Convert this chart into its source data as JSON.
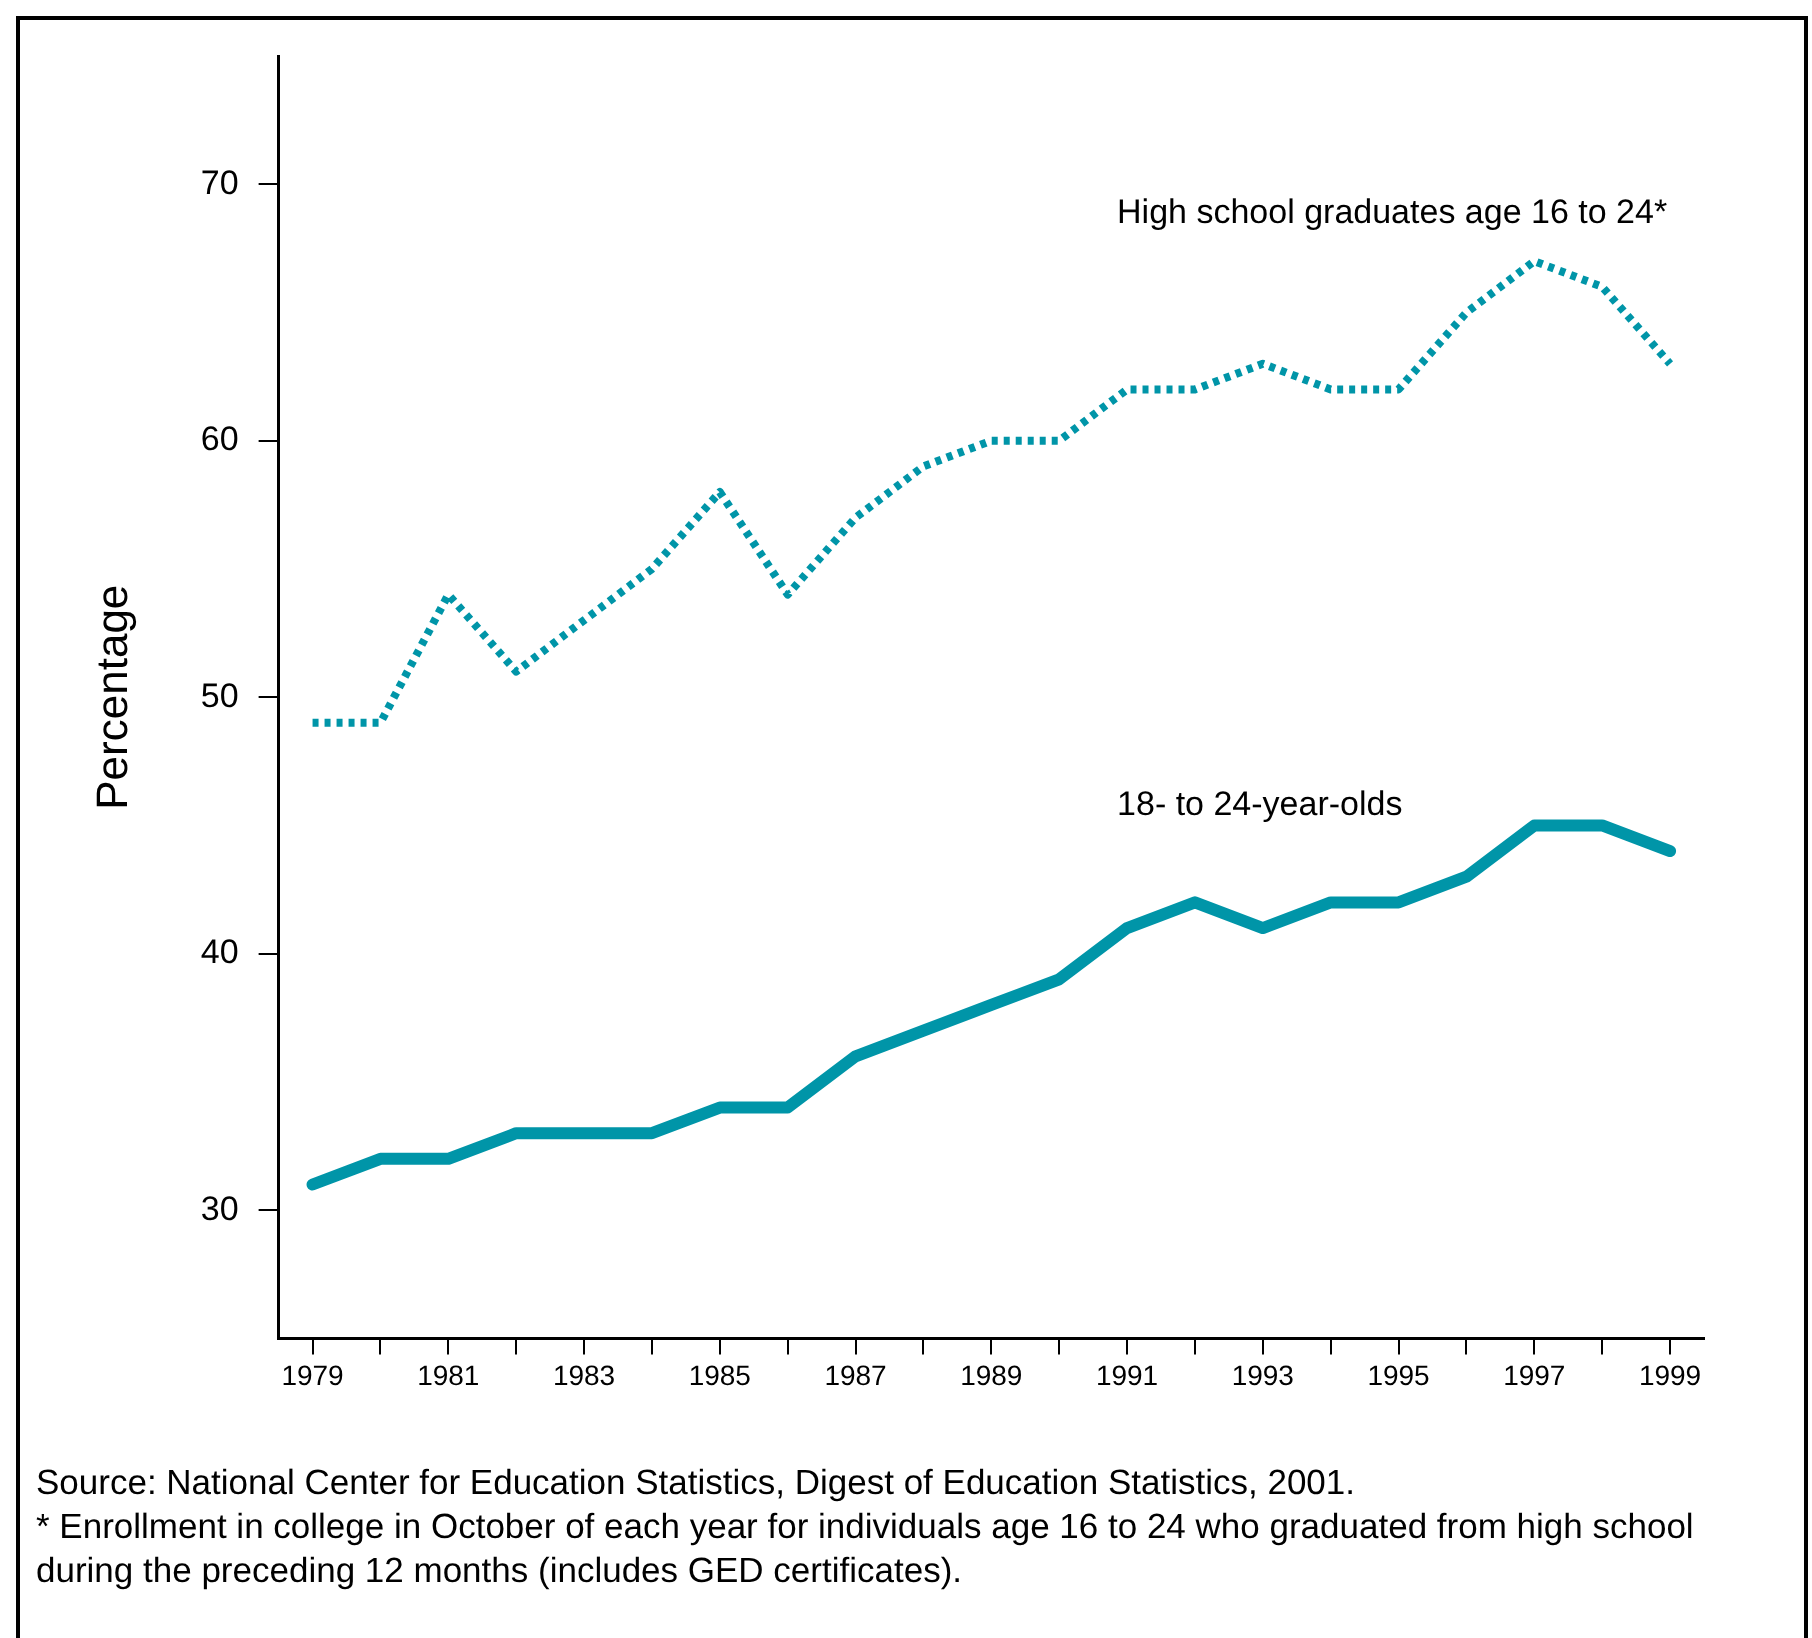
{
  "chart_data": {
    "type": "line",
    "ylabel": "Percentage",
    "x": [
      1979,
      1980,
      1981,
      1982,
      1983,
      1984,
      1985,
      1986,
      1987,
      1988,
      1989,
      1990,
      1991,
      1992,
      1993,
      1994,
      1995,
      1996,
      1997,
      1998,
      1999
    ],
    "series": [
      {
        "name": "High school graduates age 16 to 24*",
        "color": "#0095a8",
        "line_style": "dotted",
        "values": [
          49,
          49,
          54,
          51,
          53,
          55,
          58,
          54,
          57,
          59,
          60,
          60,
          62,
          62,
          63,
          62,
          62,
          65,
          67,
          66,
          63
        ]
      },
      {
        "name": "18- to 24-year-olds",
        "color": "#0095a8",
        "line_style": "solid",
        "values": [
          31,
          32,
          32,
          33,
          33,
          33,
          34,
          34,
          36,
          37,
          38,
          39,
          41,
          42,
          41,
          42,
          42,
          43,
          45,
          45,
          44
        ]
      }
    ],
    "xlim": [
      1978.5,
      1999.5
    ],
    "xticks": [
      1979,
      {
        "value": 1980,
        "label": null
      },
      1981,
      {
        "value": 1982,
        "label": null
      },
      1983,
      {
        "value": 1984,
        "label": null
      },
      1985,
      {
        "value": 1986,
        "label": null
      },
      1987,
      {
        "value": 1988,
        "label": null
      },
      1989,
      {
        "value": 1990,
        "label": null
      },
      1991,
      {
        "value": 1992,
        "label": null
      },
      1993,
      {
        "value": 1994,
        "label": null
      },
      1995,
      {
        "value": 1996,
        "label": null
      },
      1997,
      {
        "value": 1998,
        "label": null
      },
      1999
    ],
    "ylim": [
      25,
      75
    ],
    "yticks": [
      30,
      40,
      50,
      60,
      70
    ],
    "grid": false,
    "legend": false,
    "marker": "none",
    "annotations": [
      "Source: National Center for Education Statistics, Digest of Education Statistics, 2001.",
      "* Enrollment in college in October of each year for individuals age 16 to 24 who graduated from high school during the preceding 12 months (includes GED certificates)."
    ]
  }
}
